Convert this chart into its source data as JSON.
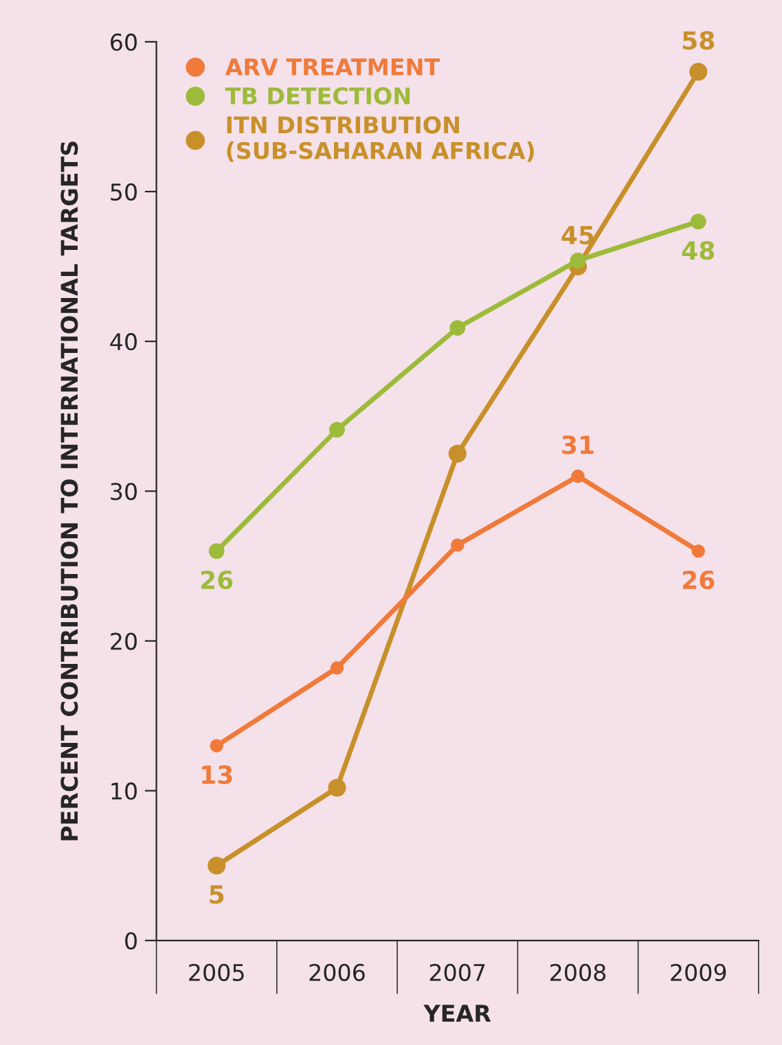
{
  "chart_data": {
    "type": "line",
    "xlabel": "YEAR",
    "ylabel": "PERCENT CONTRIBUTION TO INTERNATIONAL TARGETS",
    "categories": [
      "2005",
      "2006",
      "2007",
      "2008",
      "2009"
    ],
    "series": [
      {
        "name": "ARV TREATMENT",
        "color": "#f07a3a",
        "values": [
          13,
          18.2,
          26.4,
          31,
          26
        ],
        "value_labels": [
          "13",
          null,
          null,
          "31",
          "26"
        ]
      },
      {
        "name": "TB DETECTION",
        "color": "#9dbb3a",
        "values": [
          26,
          34.1,
          40.9,
          45.4,
          48
        ],
        "value_labels": [
          "26",
          null,
          null,
          null,
          "48"
        ]
      },
      {
        "name": "ITN DISTRIBUTION\n(SUB-SAHARAN AFRICA)",
        "color": "#c8902a",
        "values": [
          5,
          10.2,
          32.5,
          45,
          58
        ],
        "value_labels": [
          "5",
          null,
          null,
          "45",
          "58"
        ]
      }
    ],
    "ylim": [
      0,
      60
    ],
    "yticks": [
      0,
      10,
      20,
      30,
      40,
      50,
      60
    ],
    "grid": false,
    "legend": "top left",
    "marker": "circle",
    "line_style": "solid"
  }
}
